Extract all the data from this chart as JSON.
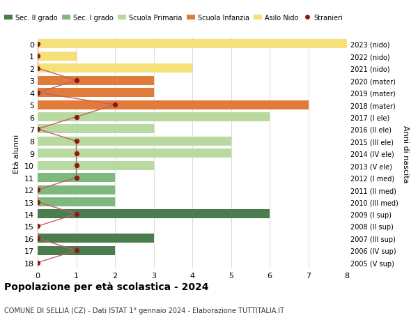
{
  "ages": [
    18,
    17,
    16,
    15,
    14,
    13,
    12,
    11,
    10,
    9,
    8,
    7,
    6,
    5,
    4,
    3,
    2,
    1,
    0
  ],
  "right_labels": [
    "2005 (V sup)",
    "2006 (IV sup)",
    "2007 (III sup)",
    "2008 (II sup)",
    "2009 (I sup)",
    "2010 (III med)",
    "2011 (II med)",
    "2012 (I med)",
    "2013 (V ele)",
    "2014 (IV ele)",
    "2015 (III ele)",
    "2016 (II ele)",
    "2017 (I ele)",
    "2018 (mater)",
    "2019 (mater)",
    "2020 (mater)",
    "2021 (nido)",
    "2022 (nido)",
    "2023 (nido)"
  ],
  "bar_values": [
    0,
    2,
    3,
    0,
    6,
    2,
    2,
    2,
    3,
    5,
    5,
    3,
    6,
    7,
    3,
    3,
    4,
    1,
    8
  ],
  "bar_colors": [
    "#4a7c4e",
    "#4a7c4e",
    "#4a7c4e",
    "#4a7c4e",
    "#4a7c4e",
    "#7db87d",
    "#7db87d",
    "#7db87d",
    "#b8d9a0",
    "#b8d9a0",
    "#b8d9a0",
    "#b8d9a0",
    "#b8d9a0",
    "#e07b39",
    "#e07b39",
    "#e07b39",
    "#f5e07a",
    "#f5e07a",
    "#f5e07a"
  ],
  "stranieri_values": [
    0,
    1,
    0,
    0,
    1,
    0,
    0,
    1,
    1,
    1,
    1,
    0,
    1,
    2,
    0,
    1,
    0,
    0,
    0
  ],
  "stranieri_color": "#8b1a1a",
  "stranieri_line_color": "#c06060",
  "legend_labels": [
    "Sec. II grado",
    "Sec. I grado",
    "Scuola Primaria",
    "Scuola Infanzia",
    "Asilo Nido",
    "Stranieri"
  ],
  "legend_colors": [
    "#4a7c4e",
    "#7db87d",
    "#b8d9a0",
    "#e07b39",
    "#f5e07a",
    "#8b1a1a"
  ],
  "title": "Popolazione per età scolastica - 2024",
  "subtitle": "COMUNE DI SELLIA (CZ) - Dati ISTAT 1° gennaio 2024 - Elaborazione TUTTITALIA.IT",
  "ylabel_left": "Età alunni",
  "ylabel_right": "Anni di nascita",
  "xlim": [
    0,
    8
  ],
  "background_color": "#ffffff",
  "grid_color": "#cccccc"
}
